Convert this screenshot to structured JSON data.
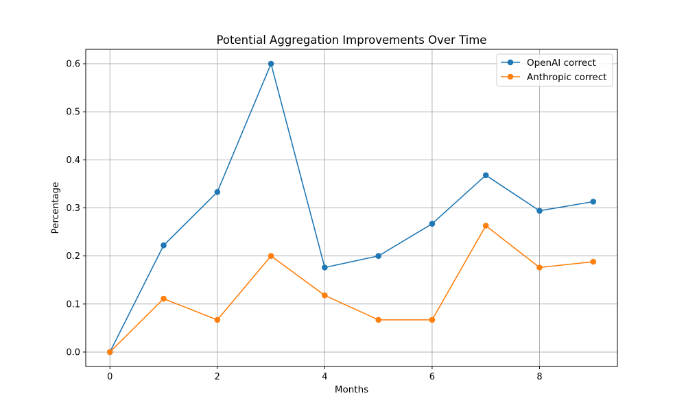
{
  "chart_data": {
    "type": "line",
    "title": "Potential Aggregation Improvements Over Time",
    "xlabel": "Months",
    "ylabel": "Percentage",
    "x": [
      0,
      1,
      2,
      3,
      4,
      5,
      6,
      7,
      8,
      9
    ],
    "xlim": [
      -0.45,
      9.45
    ],
    "ylim": [
      -0.03,
      0.63
    ],
    "xticks": [
      0,
      2,
      4,
      6,
      8
    ],
    "xtick_labels": [
      "0",
      "2",
      "4",
      "6",
      "8"
    ],
    "yticks": [
      0.0,
      0.1,
      0.2,
      0.3,
      0.4,
      0.5,
      0.6
    ],
    "ytick_labels": [
      "0.0",
      "0.1",
      "0.2",
      "0.3",
      "0.4",
      "0.5",
      "0.6"
    ],
    "grid": true,
    "legend_position": "top-right",
    "series": [
      {
        "name": "OpenAI correct",
        "color": "#1f77b4",
        "marker": "circle",
        "values": [
          0.0,
          0.222,
          0.333,
          0.6,
          0.176,
          0.2,
          0.267,
          0.368,
          0.294,
          0.313
        ]
      },
      {
        "name": "Anthropic correct",
        "color": "#ff7f0e",
        "marker": "circle",
        "values": [
          0.0,
          0.111,
          0.067,
          0.2,
          0.118,
          0.067,
          0.067,
          0.263,
          0.176,
          0.188
        ]
      }
    ]
  }
}
